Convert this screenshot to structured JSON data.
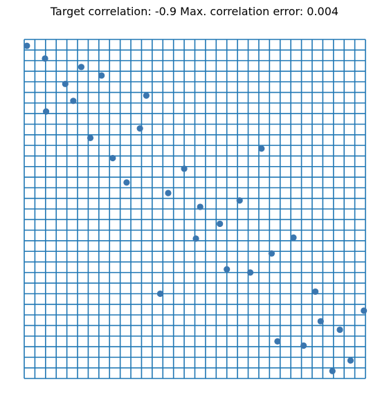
{
  "chart_data": {
    "type": "scatter",
    "title": "Target correlation: -0.9 Max. correlation error: 0.004",
    "xlabel": "",
    "ylabel": "",
    "xlim": [
      0,
      32
    ],
    "ylim": [
      0,
      32
    ],
    "grid": true,
    "grid_spacing": 1,
    "axes_visible": false,
    "colors": {
      "grid": "#1f77b4",
      "points": "#3a76af"
    },
    "points": [
      {
        "x": 0.25,
        "y": 31.4
      },
      {
        "x": 1.95,
        "y": 30.2
      },
      {
        "x": 5.35,
        "y": 29.4
      },
      {
        "x": 7.25,
        "y": 28.6
      },
      {
        "x": 3.85,
        "y": 27.8
      },
      {
        "x": 11.45,
        "y": 26.7
      },
      {
        "x": 4.6,
        "y": 26.2
      },
      {
        "x": 2.05,
        "y": 25.2
      },
      {
        "x": 10.85,
        "y": 23.6
      },
      {
        "x": 6.2,
        "y": 22.7
      },
      {
        "x": 22.25,
        "y": 21.7
      },
      {
        "x": 8.3,
        "y": 20.8
      },
      {
        "x": 15.0,
        "y": 19.8
      },
      {
        "x": 9.6,
        "y": 18.5
      },
      {
        "x": 13.5,
        "y": 17.5
      },
      {
        "x": 20.2,
        "y": 16.8
      },
      {
        "x": 16.5,
        "y": 16.2
      },
      {
        "x": 18.35,
        "y": 14.6
      },
      {
        "x": 25.25,
        "y": 13.3
      },
      {
        "x": 16.1,
        "y": 13.2
      },
      {
        "x": 23.2,
        "y": 11.8
      },
      {
        "x": 19.0,
        "y": 10.3
      },
      {
        "x": 21.2,
        "y": 10.0
      },
      {
        "x": 12.75,
        "y": 8.0
      },
      {
        "x": 27.3,
        "y": 8.2
      },
      {
        "x": 31.85,
        "y": 6.4
      },
      {
        "x": 27.8,
        "y": 5.4
      },
      {
        "x": 29.6,
        "y": 4.6
      },
      {
        "x": 23.75,
        "y": 3.5
      },
      {
        "x": 26.2,
        "y": 3.1
      },
      {
        "x": 30.6,
        "y": 1.7
      },
      {
        "x": 28.9,
        "y": 0.7
      }
    ]
  }
}
